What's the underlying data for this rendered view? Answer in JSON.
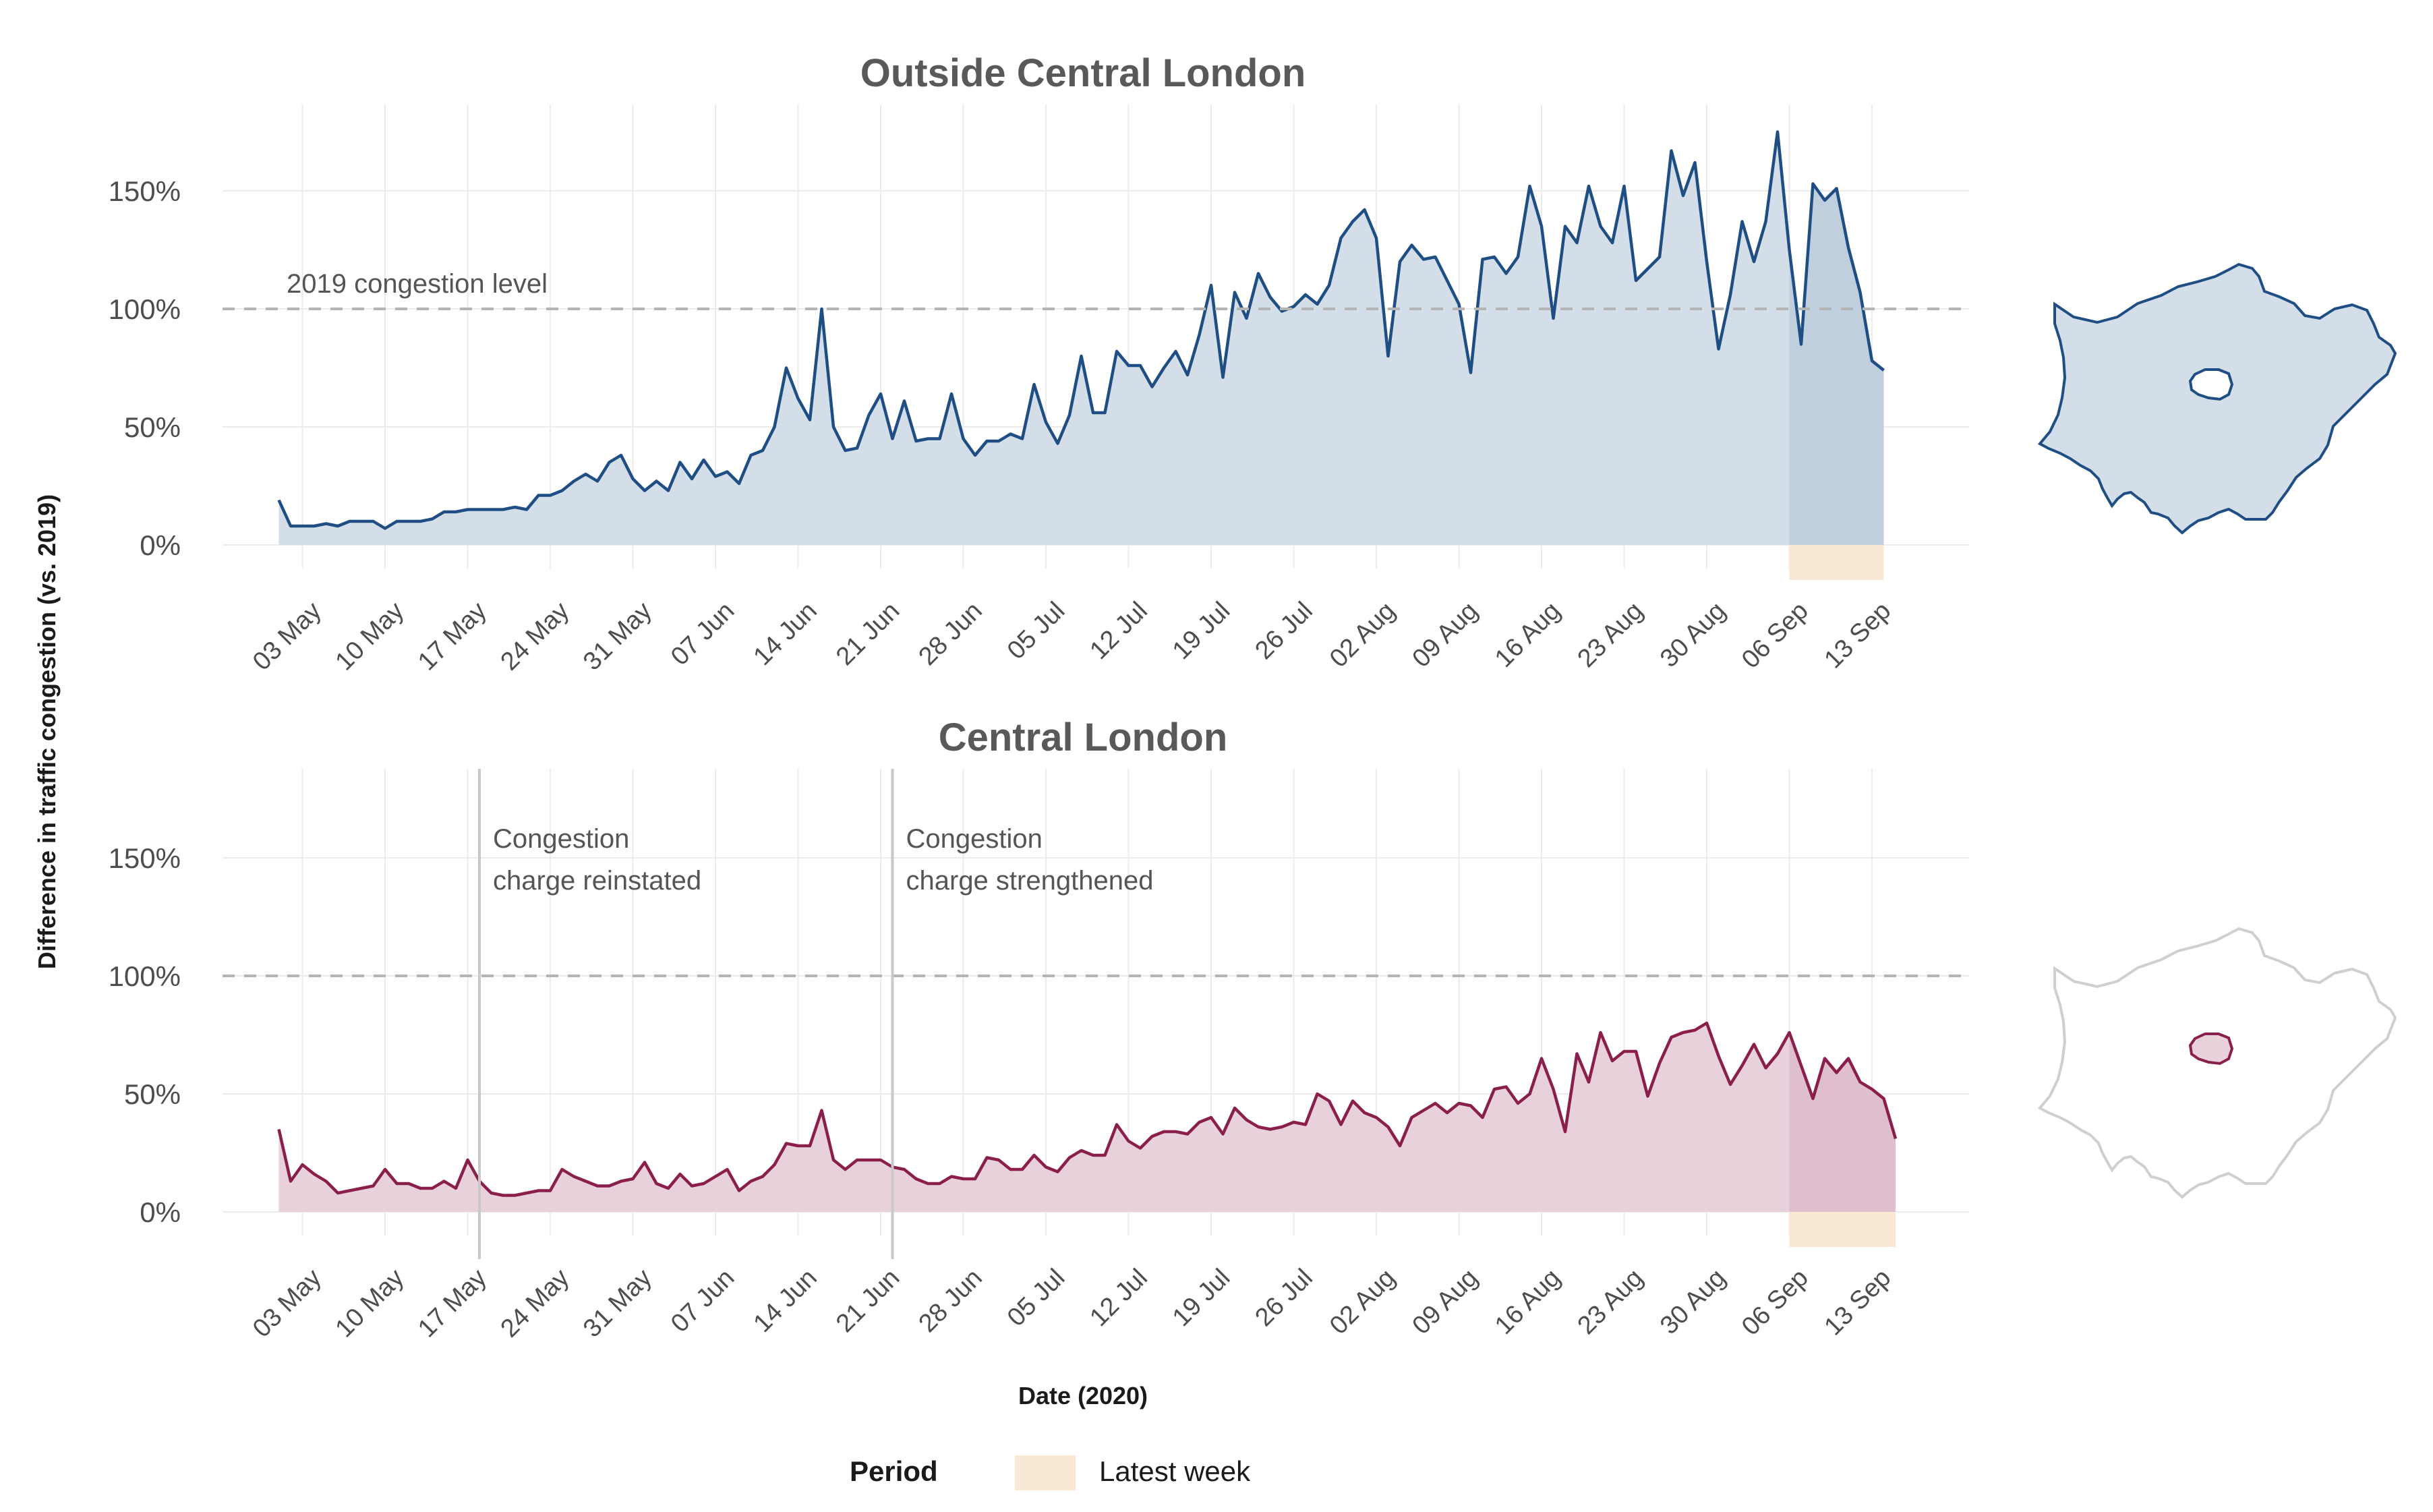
{
  "colors": {
    "outside_line": "#1f4e85",
    "outside_fill": "#d3dee8",
    "central_line": "#8b1f4b",
    "central_fill": "#e9d1dc",
    "latest_week": "#f8e8d4",
    "reference": "#b4b4b4",
    "grid": "#ebebeb",
    "map_outline_inactive": "#cfcfcf",
    "title_text": "#595959"
  },
  "legend": {
    "title": "Period",
    "label": "Latest week"
  },
  "chart_data": [
    {
      "type": "area",
      "title": "Outside Central London",
      "ylabel": "Difference in traffic congestion (vs. 2019)",
      "xlabel": "",
      "x_start": "2020-05-01",
      "x_ticks": [
        "03 May",
        "10 May",
        "17 May",
        "24 May",
        "31 May",
        "07 Jun",
        "14 Jun",
        "21 Jun",
        "28 Jun",
        "05 Jul",
        "12 Jul",
        "19 Jul",
        "26 Jul",
        "02 Aug",
        "09 Aug",
        "16 Aug",
        "23 Aug",
        "30 Aug",
        "06 Sep",
        "13 Sep"
      ],
      "y_ticks": [
        "0%",
        "50%",
        "100%",
        "150%"
      ],
      "ylim": [
        -15,
        185
      ],
      "reference_line": {
        "y": 100,
        "label": "2019 congestion level"
      },
      "latest_week": [
        "06 Sep",
        "13 Sep"
      ],
      "values": [
        19,
        8,
        8,
        8,
        9,
        8,
        10,
        10,
        10,
        7,
        10,
        10,
        10,
        11,
        14,
        14,
        15,
        15,
        15,
        15,
        16,
        15,
        21,
        21,
        23,
        27,
        30,
        27,
        35,
        38,
        28,
        23,
        27,
        23,
        35,
        28,
        36,
        29,
        31,
        26,
        38,
        40,
        50,
        75,
        62,
        53,
        100,
        50,
        40,
        41,
        55,
        64,
        45,
        61,
        44,
        45,
        45,
        64,
        45,
        38,
        44,
        44,
        47,
        45,
        68,
        52,
        43,
        55,
        80,
        56,
        56,
        82,
        76,
        76,
        67,
        75,
        82,
        72,
        89,
        110,
        71,
        107,
        96,
        115,
        105,
        99,
        101,
        106,
        102,
        110,
        130,
        137,
        142,
        130,
        80,
        120,
        127,
        121,
        122,
        112,
        102,
        73,
        121,
        122,
        115,
        122,
        152,
        135,
        96,
        135,
        128,
        152,
        135,
        128,
        152,
        112,
        117,
        122,
        167,
        148,
        162,
        120,
        83,
        106,
        137,
        120,
        137,
        175,
        125,
        85,
        153,
        146,
        151,
        126,
        107,
        78,
        74
      ]
    },
    {
      "type": "area",
      "title": "Central London",
      "ylabel": "Difference in traffic congestion (vs. 2019)",
      "xlabel": "Date (2020)",
      "x_start": "2020-05-01",
      "x_ticks": [
        "03 May",
        "10 May",
        "17 May",
        "24 May",
        "31 May",
        "07 Jun",
        "14 Jun",
        "21 Jun",
        "28 Jun",
        "05 Jul",
        "12 Jul",
        "19 Jul",
        "26 Jul",
        "02 Aug",
        "09 Aug",
        "16 Aug",
        "23 Aug",
        "30 Aug",
        "06 Sep",
        "13 Sep"
      ],
      "y_ticks": [
        "0%",
        "50%",
        "100%",
        "150%"
      ],
      "ylim": [
        -15,
        185
      ],
      "reference_line": {
        "y": 100,
        "label": ""
      },
      "events": [
        {
          "x": "2020-05-18",
          "label_lines": [
            "Congestion",
            "charge reinstated"
          ]
        },
        {
          "x": "2020-06-22",
          "label_lines": [
            "Congestion",
            "charge strengthened"
          ]
        }
      ],
      "latest_week": [
        "06 Sep",
        "13 Sep"
      ],
      "values": [
        35,
        13,
        20,
        16,
        13,
        8,
        9,
        10,
        11,
        18,
        12,
        12,
        10,
        10,
        13,
        10,
        22,
        13,
        8,
        7,
        7,
        8,
        9,
        9,
        18,
        15,
        13,
        11,
        11,
        13,
        14,
        21,
        12,
        10,
        16,
        11,
        12,
        15,
        18,
        9,
        13,
        15,
        20,
        29,
        28,
        28,
        43,
        22,
        18,
        22,
        22,
        22,
        19,
        18,
        14,
        12,
        12,
        15,
        14,
        14,
        23,
        22,
        18,
        18,
        24,
        19,
        17,
        23,
        26,
        24,
        24,
        37,
        30,
        27,
        32,
        34,
        34,
        33,
        38,
        40,
        33,
        44,
        39,
        36,
        35,
        36,
        38,
        37,
        50,
        47,
        37,
        47,
        42,
        40,
        36,
        28,
        40,
        43,
        46,
        42,
        46,
        45,
        40,
        52,
        53,
        46,
        50,
        65,
        52,
        34,
        67,
        55,
        76,
        64,
        68,
        68,
        49,
        63,
        74,
        76,
        77,
        80,
        66,
        54,
        62,
        71,
        61,
        67,
        76,
        62,
        48,
        65,
        59,
        65,
        55,
        52,
        48,
        31
      ]
    }
  ]
}
